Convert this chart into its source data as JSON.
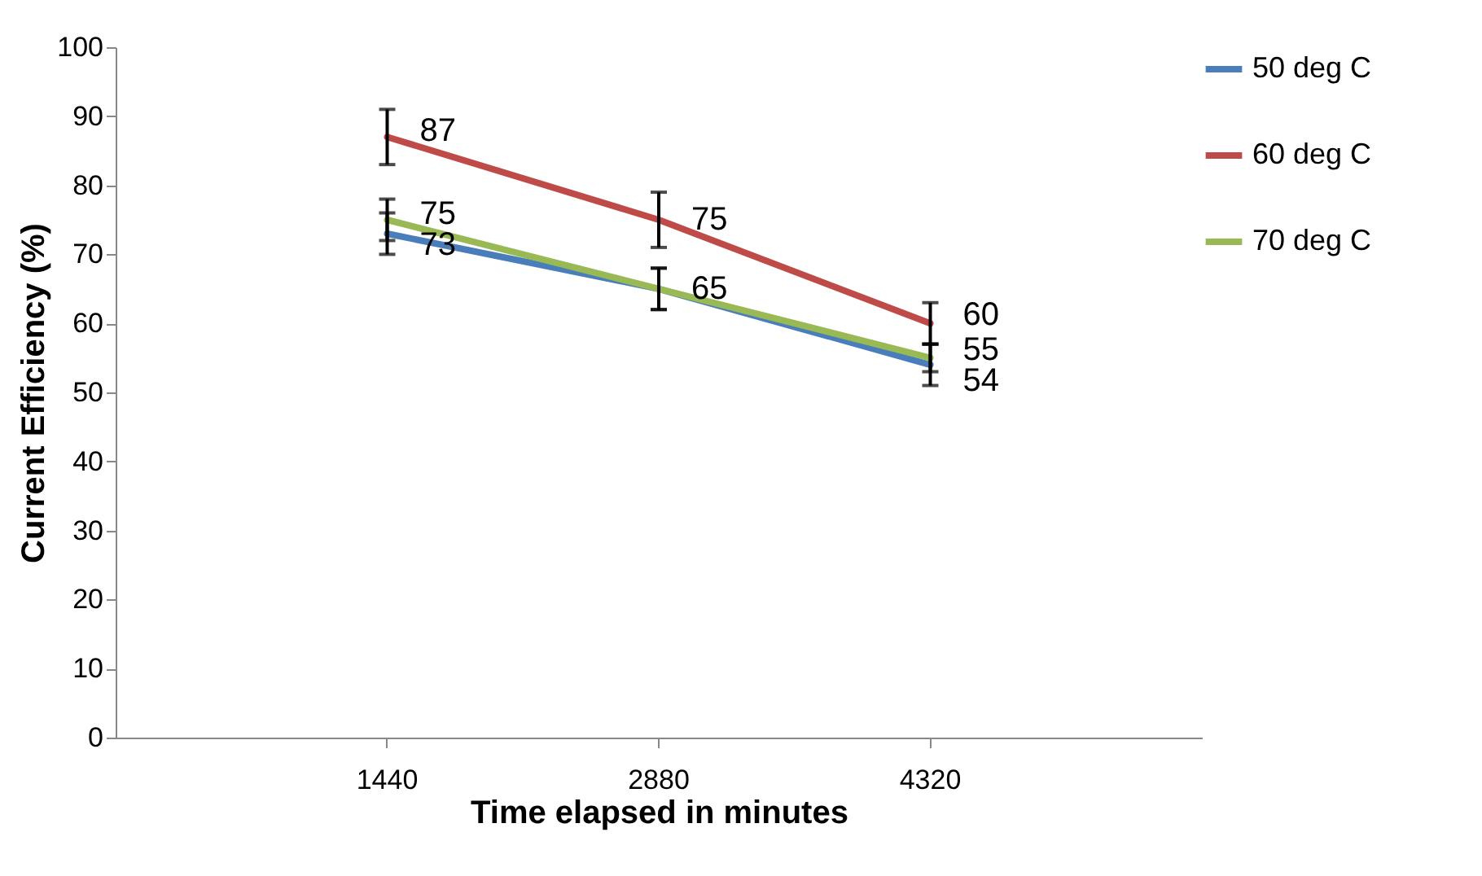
{
  "chart_data": {
    "type": "line",
    "xlabel": "Time elapsed in minutes",
    "ylabel": "Current  Efficiency (%)",
    "categories": [
      "1440",
      "2880",
      "4320"
    ],
    "series": [
      {
        "name": "50 deg C",
        "color": "#4a7ebb",
        "values": [
          73,
          65,
          54
        ],
        "errors": [
          3,
          3,
          3
        ],
        "value_labels": [
          "73",
          "65",
          "54"
        ]
      },
      {
        "name": "60 deg C",
        "color": "#be4b48",
        "values": [
          87,
          75,
          60
        ],
        "errors": [
          4,
          4,
          3
        ],
        "value_labels": [
          "87",
          "75",
          "60"
        ]
      },
      {
        "name": "70 deg C",
        "color": "#98b954",
        "values": [
          75,
          65,
          55
        ],
        "errors": [
          3,
          3,
          2
        ],
        "value_labels": [
          "75",
          null,
          "55"
        ]
      }
    ],
    "ylim": [
      0,
      100
    ],
    "yticks": [
      0,
      10,
      20,
      30,
      40,
      50,
      60,
      70,
      80,
      90,
      100
    ],
    "grid": false,
    "legend": "right",
    "marker": "none",
    "line_style": "solid"
  }
}
